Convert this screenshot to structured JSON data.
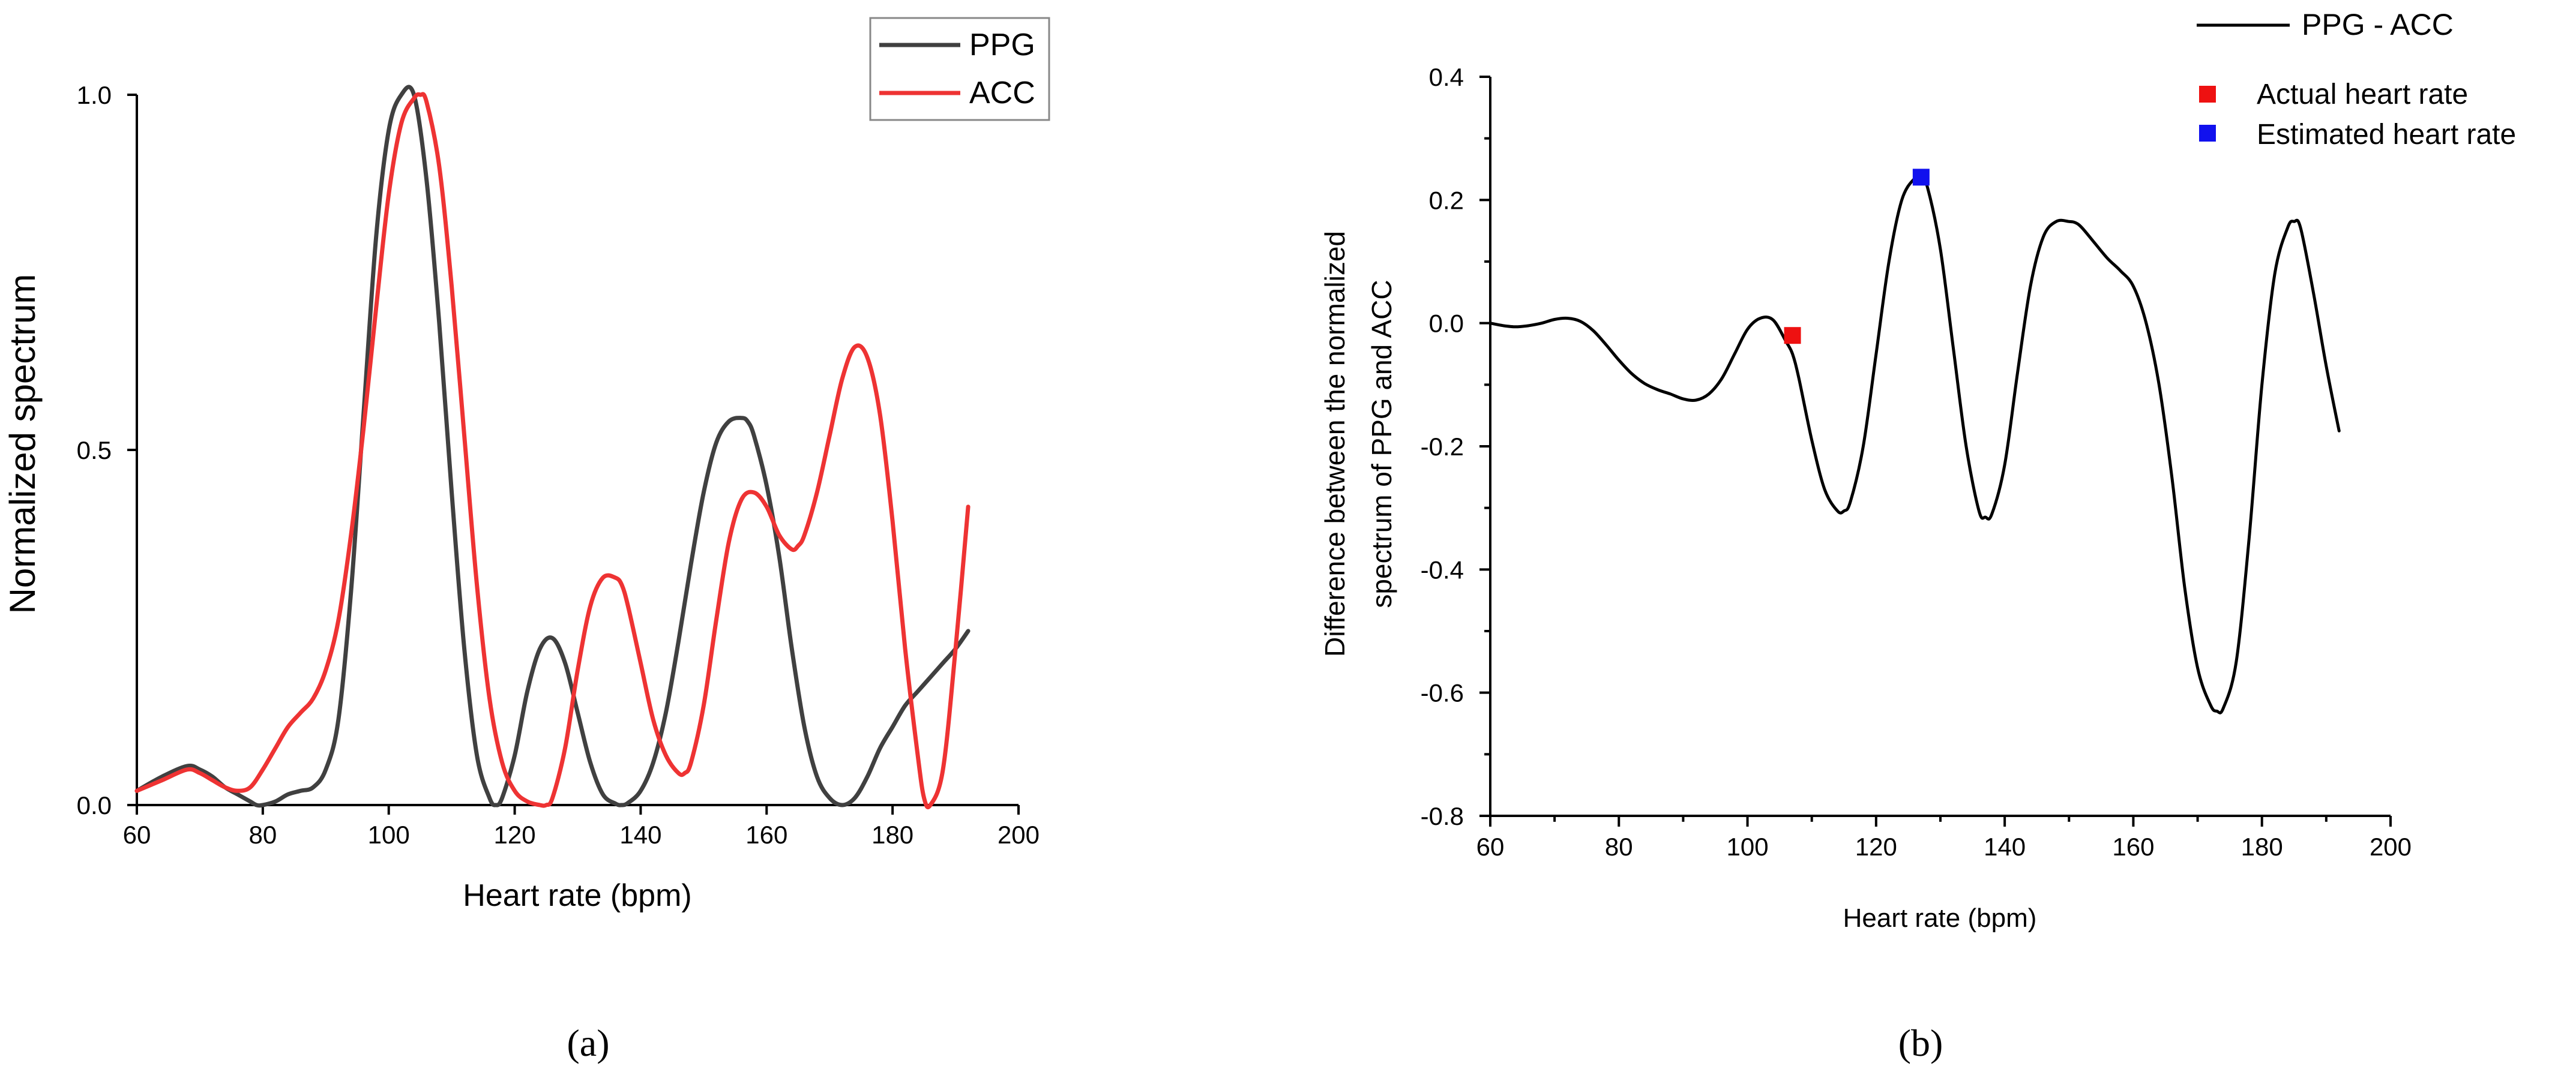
{
  "chart_data": [
    {
      "type": "line",
      "panel": "a",
      "caption": "(a)",
      "xlabel": "Heart rate (bpm)",
      "ylabel": "Normalized spectrum",
      "xlim": [
        60,
        200
      ],
      "ylim": [
        0,
        1.0
      ],
      "xticks": [
        "60",
        "80",
        "100",
        "120",
        "140",
        "160",
        "180",
        "200"
      ],
      "yticks": [
        "0.0",
        "0.5",
        "1.0"
      ],
      "legend": [
        "PPG",
        "ACC"
      ],
      "series": [
        {
          "name": "PPG",
          "color": "#404040",
          "x": [
            60,
            64,
            68,
            70,
            72,
            74,
            76,
            78,
            79,
            80,
            82,
            84,
            86,
            88,
            90,
            92,
            94,
            96,
            98,
            100,
            102,
            104,
            106,
            108,
            110,
            112,
            114,
            116,
            117,
            118,
            120,
            122,
            124,
            126,
            128,
            130,
            132,
            134,
            136,
            137,
            138,
            140,
            142,
            144,
            146,
            148,
            150,
            152,
            154,
            156,
            157,
            158,
            160,
            162,
            164,
            166,
            168,
            170,
            172,
            174,
            176,
            178,
            180,
            182,
            184,
            186,
            188,
            190,
            192
          ],
          "y": [
            0.02,
            0.04,
            0.055,
            0.05,
            0.04,
            0.025,
            0.015,
            0.005,
            0.0,
            0.0,
            0.005,
            0.015,
            0.02,
            0.025,
            0.05,
            0.12,
            0.3,
            0.55,
            0.8,
            0.95,
            1.0,
            1.0,
            0.88,
            0.68,
            0.44,
            0.22,
            0.07,
            0.01,
            0.0,
            0.01,
            0.07,
            0.16,
            0.22,
            0.235,
            0.2,
            0.13,
            0.06,
            0.015,
            0.002,
            0.0,
            0.003,
            0.02,
            0.06,
            0.13,
            0.23,
            0.34,
            0.44,
            0.51,
            0.54,
            0.545,
            0.54,
            0.52,
            0.45,
            0.35,
            0.22,
            0.11,
            0.04,
            0.01,
            0.0,
            0.01,
            0.04,
            0.08,
            0.11,
            0.14,
            0.16,
            0.18,
            0.2,
            0.22,
            0.245
          ]
        },
        {
          "name": "ACC",
          "color": "#ee3333",
          "x": [
            60,
            64,
            68,
            70,
            72,
            74,
            76,
            78,
            80,
            82,
            84,
            86,
            88,
            90,
            92,
            94,
            96,
            98,
            100,
            102,
            104,
            105,
            106,
            108,
            110,
            112,
            114,
            116,
            118,
            120,
            122,
            124,
            125,
            126,
            128,
            130,
            132,
            134,
            136,
            137,
            138,
            140,
            142,
            144,
            146,
            147,
            148,
            150,
            152,
            154,
            156,
            158,
            160,
            162,
            164,
            165,
            166,
            168,
            170,
            172,
            174,
            176,
            178,
            180,
            182,
            184,
            185,
            186,
            188,
            190,
            192
          ],
          "y": [
            0.02,
            0.035,
            0.05,
            0.045,
            0.035,
            0.025,
            0.02,
            0.025,
            0.05,
            0.08,
            0.11,
            0.13,
            0.15,
            0.19,
            0.26,
            0.38,
            0.53,
            0.7,
            0.86,
            0.96,
            0.995,
            1.0,
            0.99,
            0.9,
            0.73,
            0.52,
            0.31,
            0.15,
            0.06,
            0.02,
            0.005,
            0.0,
            0.0,
            0.01,
            0.08,
            0.19,
            0.28,
            0.32,
            0.32,
            0.31,
            0.28,
            0.2,
            0.12,
            0.07,
            0.045,
            0.045,
            0.06,
            0.14,
            0.26,
            0.37,
            0.43,
            0.44,
            0.42,
            0.38,
            0.36,
            0.365,
            0.38,
            0.44,
            0.52,
            0.6,
            0.645,
            0.63,
            0.55,
            0.4,
            0.22,
            0.07,
            0.01,
            0.0,
            0.05,
            0.22,
            0.42
          ]
        }
      ]
    },
    {
      "type": "line",
      "panel": "b",
      "caption": "(b)",
      "xlabel": "Heart rate (bpm)",
      "ylabel": [
        "Difference between the normalized",
        "spectrum of PPG and ACC"
      ],
      "xlim": [
        60,
        200
      ],
      "ylim": [
        -0.8,
        0.4
      ],
      "xticks": [
        "60",
        "80",
        "100",
        "120",
        "140",
        "160",
        "180",
        "200"
      ],
      "yticks": [
        "-0.8",
        "-0.6",
        "-0.4",
        "-0.2",
        "0.0",
        "0.2",
        "0.4"
      ],
      "legend": [
        "PPG - ACC",
        "Actual heart rate",
        "Estimated heart rate"
      ],
      "series": [
        {
          "name": "PPG - ACC",
          "color": "#000000",
          "x": [
            60,
            62,
            64,
            66,
            68,
            70,
            72,
            74,
            76,
            78,
            80,
            82,
            84,
            86,
            88,
            90,
            92,
            94,
            96,
            98,
            100,
            102,
            104,
            106,
            107,
            108,
            110,
            112,
            114,
            115,
            116,
            118,
            120,
            122,
            124,
            126,
            127,
            128,
            130,
            132,
            134,
            136,
            137,
            138,
            140,
            142,
            144,
            146,
            148,
            150,
            151,
            152,
            154,
            156,
            158,
            160,
            162,
            164,
            166,
            168,
            170,
            172,
            173,
            174,
            176,
            178,
            180,
            182,
            184,
            185,
            186,
            188,
            190,
            192
          ],
          "y": [
            0.0,
            -0.004,
            -0.006,
            -0.004,
            0.0,
            0.006,
            0.008,
            0.003,
            -0.012,
            -0.035,
            -0.06,
            -0.082,
            -0.098,
            -0.108,
            -0.115,
            -0.123,
            -0.125,
            -0.115,
            -0.09,
            -0.05,
            -0.01,
            0.008,
            0.005,
            -0.03,
            -0.05,
            -0.09,
            -0.19,
            -0.27,
            -0.305,
            -0.305,
            -0.29,
            -0.2,
            -0.05,
            0.1,
            0.2,
            0.235,
            0.235,
            0.22,
            0.12,
            -0.04,
            -0.2,
            -0.305,
            -0.315,
            -0.31,
            -0.23,
            -0.08,
            0.06,
            0.14,
            0.165,
            0.165,
            0.163,
            0.155,
            0.13,
            0.105,
            0.085,
            0.06,
            0.0,
            -0.1,
            -0.25,
            -0.43,
            -0.56,
            -0.62,
            -0.63,
            -0.625,
            -0.55,
            -0.35,
            -0.1,
            0.08,
            0.155,
            0.165,
            0.155,
            0.05,
            -0.07,
            -0.175
          ]
        }
      ],
      "markers": [
        {
          "name": "Actual heart rate",
          "color": "#ee1111",
          "x": 107,
          "y": -0.02
        },
        {
          "name": "Estimated heart rate",
          "color": "#1111ee",
          "x": 127,
          "y": 0.237
        }
      ]
    }
  ]
}
